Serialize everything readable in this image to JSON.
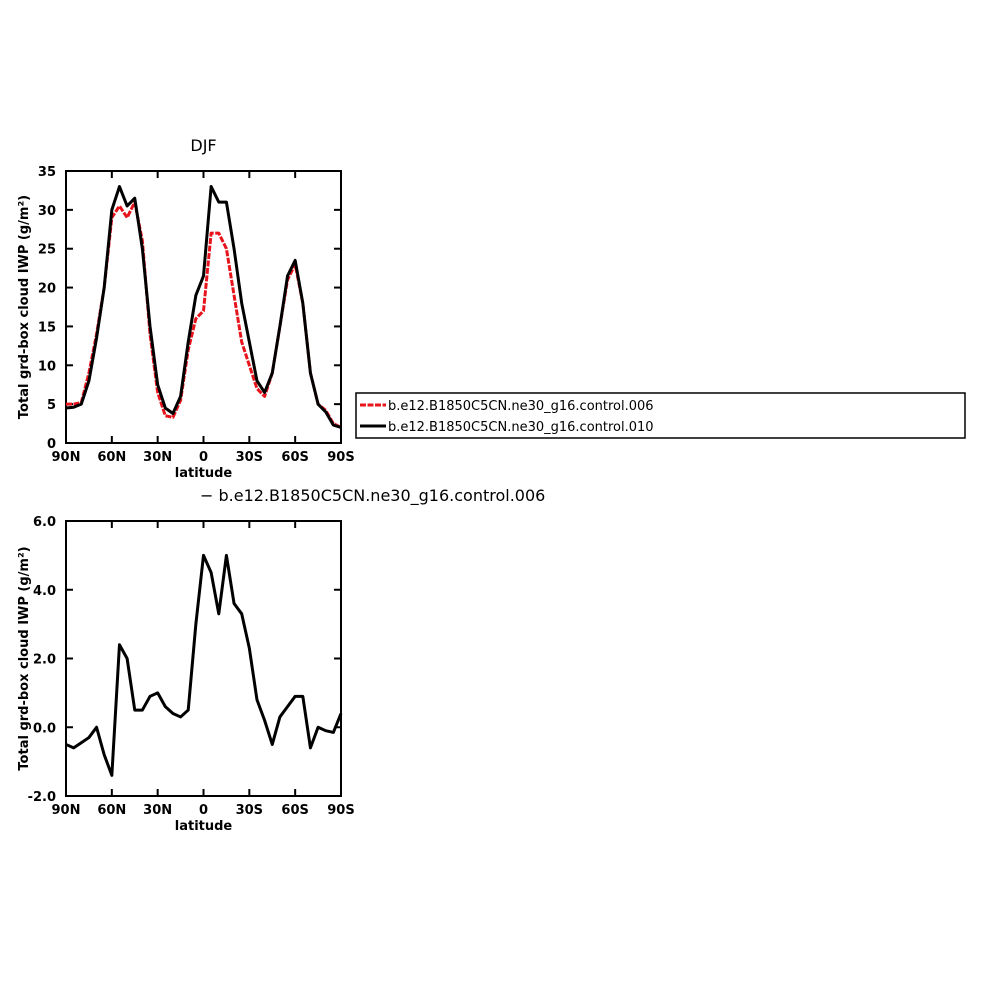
{
  "chart_data": [
    {
      "type": "line",
      "title": "DJF",
      "y_label": "Total grd-box cloud IWP (g/m²)",
      "x_label": "latitude",
      "x": [
        90,
        85,
        80,
        75,
        70,
        65,
        60,
        55,
        50,
        45,
        40,
        35,
        30,
        25,
        20,
        15,
        10,
        5,
        0,
        -5,
        -10,
        -15,
        -20,
        -25,
        -30,
        -35,
        -40,
        -45,
        -50,
        -55,
        -60,
        -65,
        -70,
        -75,
        -80,
        -85,
        -90
      ],
      "xlim": [
        90,
        -90
      ],
      "xticks": [
        {
          "value": 90,
          "label": "90N"
        },
        {
          "value": 60,
          "label": "60N"
        },
        {
          "value": 30,
          "label": "30N"
        },
        0,
        {
          "value": -30,
          "label": "30S"
        },
        {
          "value": -60,
          "label": "60S"
        },
        {
          "value": -90,
          "label": "90S"
        }
      ],
      "ylim": [
        0,
        35
      ],
      "yticks": [
        0,
        5,
        10,
        15,
        20,
        25,
        30,
        35
      ],
      "legend": "right",
      "series": [
        {
          "name": "b.e12.B1850C5CN.ne30_g16.control.006",
          "color": "#e8141c",
          "dashed": true,
          "values": [
            5,
            5,
            5.2,
            9,
            14,
            20,
            29,
            30.5,
            29,
            31,
            26,
            14,
            6.5,
            3.5,
            3.3,
            5.5,
            12,
            16,
            17,
            27,
            27,
            25,
            19,
            13,
            10,
            7,
            6,
            9,
            15,
            21,
            23,
            18,
            9,
            5,
            4.2,
            2.5,
            2
          ]
        },
        {
          "name": "b.e12.B1850C5CN.ne30_g16.control.010",
          "color": "#000000",
          "dashed": false,
          "values": [
            4.5,
            4.6,
            5,
            8,
            13.5,
            20,
            30,
            33,
            30.5,
            31.5,
            25,
            15,
            7.5,
            4.5,
            3.8,
            6,
            13,
            19,
            21.5,
            33,
            31,
            31,
            25,
            18,
            13,
            8,
            6.5,
            9,
            15,
            21.5,
            23.5,
            18,
            9,
            5,
            4,
            2.3,
            2
          ]
        }
      ]
    },
    {
      "type": "line",
      "title": "− b.e12.B1850C5CN.ne30_g16.control.006",
      "y_label": "Total grd-box cloud IWP (g/m²)",
      "x_label": "latitude",
      "x": [
        90,
        85,
        80,
        75,
        70,
        65,
        60,
        55,
        50,
        45,
        40,
        35,
        30,
        25,
        20,
        15,
        10,
        5,
        0,
        -5,
        -10,
        -15,
        -20,
        -25,
        -30,
        -35,
        -40,
        -45,
        -50,
        -55,
        -60,
        -65,
        -70,
        -75,
        -80,
        -85,
        -90
      ],
      "xlim": [
        90,
        -90
      ],
      "xticks": [
        {
          "value": 90,
          "label": "90N"
        },
        {
          "value": 60,
          "label": "60N"
        },
        {
          "value": 30,
          "label": "30N"
        },
        0,
        {
          "value": -30,
          "label": "30S"
        },
        {
          "value": -60,
          "label": "60S"
        },
        {
          "value": -90,
          "label": "90S"
        }
      ],
      "ylim": [
        -2,
        6
      ],
      "yticks": [
        {
          "value": -2,
          "label": "-2.0"
        },
        {
          "value": 0,
          "label": "0.0"
        },
        {
          "value": 2,
          "label": "2.0"
        },
        {
          "value": 4,
          "label": "4.0"
        },
        {
          "value": 6,
          "label": "6.0"
        }
      ],
      "series": [
        {
          "color": "#000000",
          "dashed": false,
          "values": [
            -0.5,
            -0.6,
            -0.45,
            -0.3,
            0,
            -0.8,
            -1.4,
            2.4,
            2.0,
            0.5,
            0.5,
            0.9,
            1.0,
            0.6,
            0.4,
            0.3,
            0.5,
            3.0,
            5.0,
            4.5,
            3.3,
            5.0,
            3.6,
            3.3,
            2.3,
            0.8,
            0.2,
            -0.5,
            0.3,
            0.6,
            0.9,
            0.9,
            -0.6,
            0,
            -0.1,
            -0.15,
            0.4
          ]
        }
      ]
    }
  ]
}
